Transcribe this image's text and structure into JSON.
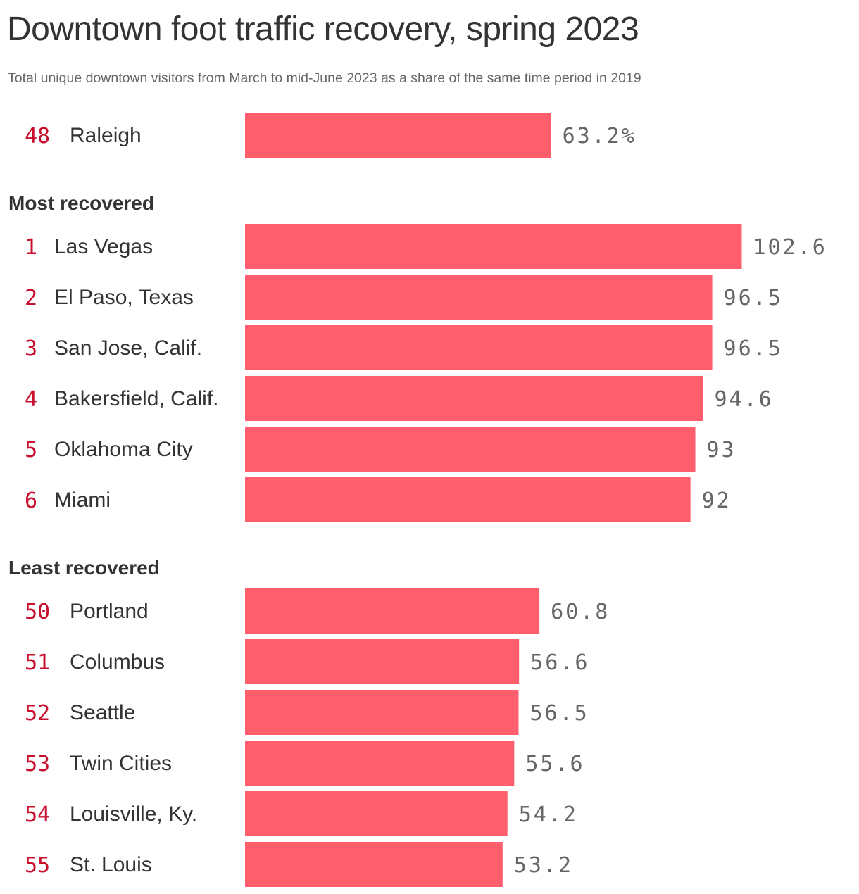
{
  "chart_data": {
    "type": "bar",
    "orientation": "horizontal",
    "title": "Downtown foot traffic recovery, spring 2023",
    "subtitle": "Total unique downtown visitors from March to mid-June 2023 as a share of the same time period in 2019",
    "bar_color": "#ff5f6d",
    "rank_color": "#c8102e",
    "groups": [
      {
        "heading": "",
        "items": [
          {
            "rank": "48",
            "city": "Raleigh",
            "value": 63.2,
            "label": "63.2%"
          }
        ]
      },
      {
        "heading": "Most recovered",
        "items": [
          {
            "rank": "1",
            "city": "Las Vegas",
            "value": 102.6,
            "label": "102.6"
          },
          {
            "rank": "2",
            "city": "El Paso, Texas",
            "value": 96.5,
            "label": "96.5"
          },
          {
            "rank": "3",
            "city": "San Jose, Calif.",
            "value": 96.5,
            "label": "96.5"
          },
          {
            "rank": "4",
            "city": "Bakersfield, Calif.",
            "value": 94.6,
            "label": "94.6"
          },
          {
            "rank": "5",
            "city": "Oklahoma City",
            "value": 93,
            "label": "93"
          },
          {
            "rank": "6",
            "city": "Miami",
            "value": 92,
            "label": "92"
          }
        ]
      },
      {
        "heading": "Least recovered",
        "items": [
          {
            "rank": "50",
            "city": "Portland",
            "value": 60.8,
            "label": "60.8"
          },
          {
            "rank": "51",
            "city": "Columbus",
            "value": 56.6,
            "label": "56.6"
          },
          {
            "rank": "52",
            "city": "Seattle",
            "value": 56.5,
            "label": "56.5"
          },
          {
            "rank": "53",
            "city": "Twin Cities",
            "value": 55.6,
            "label": "55.6"
          },
          {
            "rank": "54",
            "city": "Louisville, Ky.",
            "value": 54.2,
            "label": "54.2"
          },
          {
            "rank": "55",
            "city": "St. Louis",
            "value": 53.2,
            "label": "53.2"
          }
        ]
      }
    ]
  }
}
